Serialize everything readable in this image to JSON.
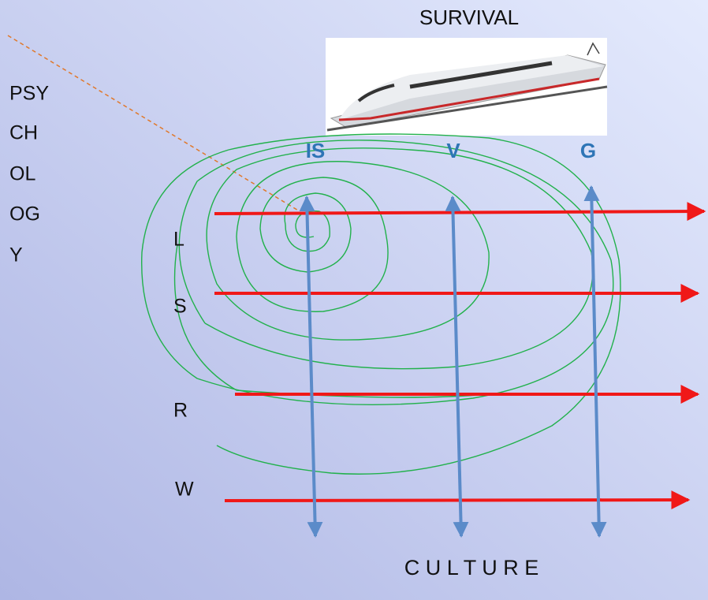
{
  "title": "SURVIVAL",
  "footer": "C U L T U R E",
  "side_label": [
    "PSY",
    "CH",
    "OL",
    "OG",
    "Y"
  ],
  "rows": [
    "L",
    "S",
    "R",
    "W"
  ],
  "columns": [
    "IS",
    "V",
    "G"
  ]
}
